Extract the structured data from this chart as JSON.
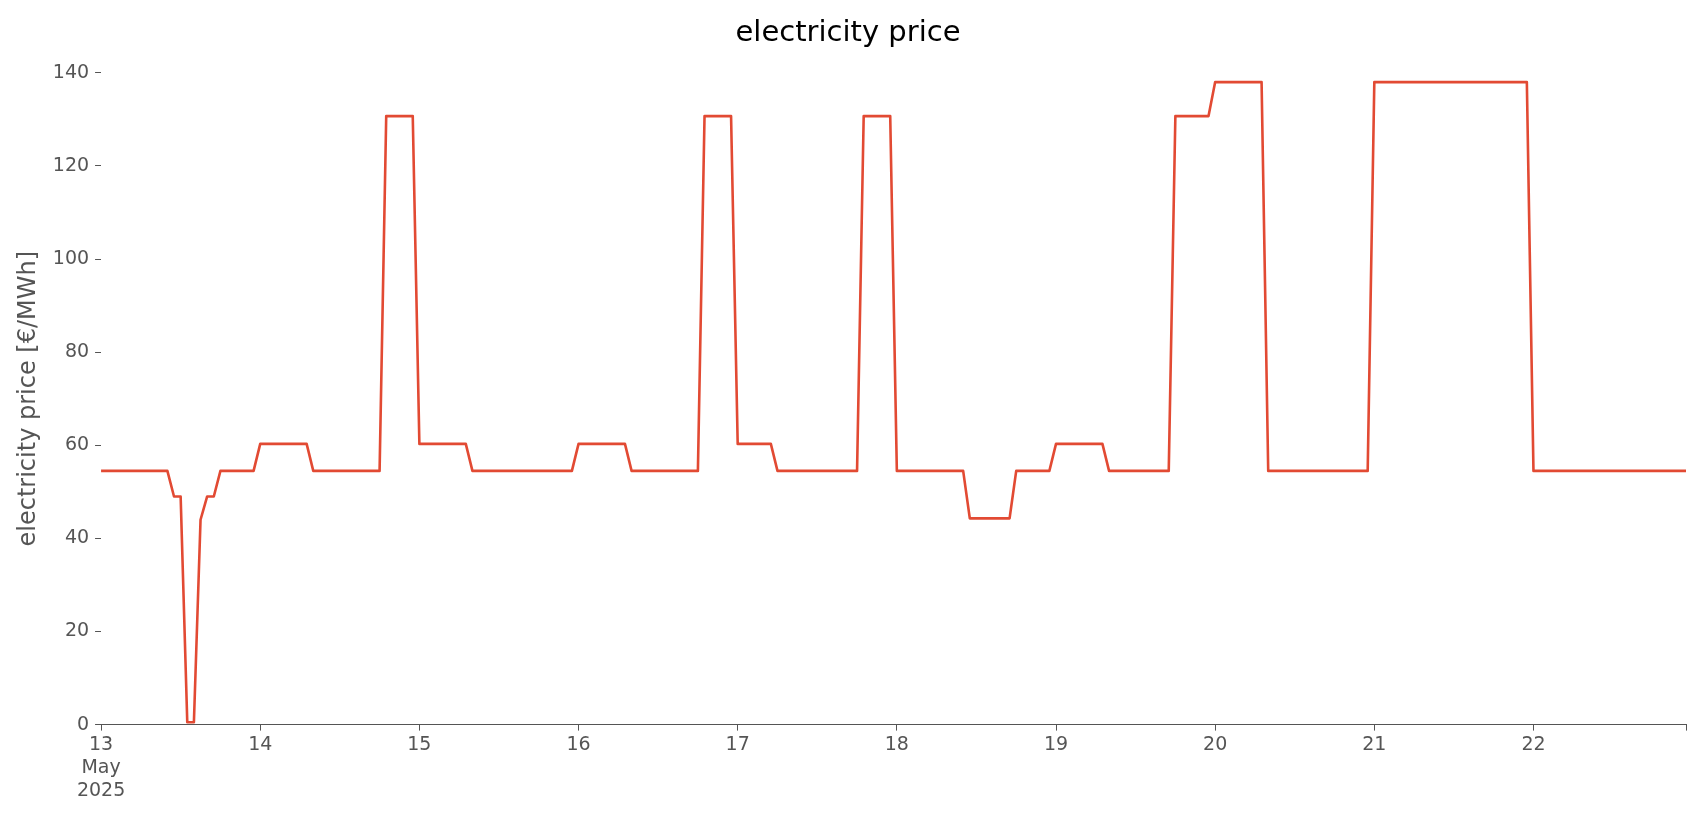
{
  "chart_data": {
    "type": "line",
    "title": "electricity price",
    "ylabel": "electricity price [€/MWh]",
    "x": [
      "2025-05-13T00:00",
      "2025-05-13T10:00",
      "2025-05-13T11:00",
      "2025-05-13T12:00",
      "2025-05-13T13:00",
      "2025-05-13T14:00",
      "2025-05-13T15:00",
      "2025-05-13T16:00",
      "2025-05-13T17:00",
      "2025-05-13T18:00",
      "2025-05-13T23:00",
      "2025-05-14T00:00",
      "2025-05-14T07:00",
      "2025-05-14T08:00",
      "2025-05-14T18:00",
      "2025-05-14T19:00",
      "2025-05-14T23:00",
      "2025-05-15T00:00",
      "2025-05-15T07:00",
      "2025-05-15T08:00",
      "2025-05-15T23:00",
      "2025-05-16T00:00",
      "2025-05-16T07:00",
      "2025-05-16T08:00",
      "2025-05-16T18:00",
      "2025-05-16T19:00",
      "2025-05-16T23:00",
      "2025-05-17T00:00",
      "2025-05-17T05:00",
      "2025-05-17T06:00",
      "2025-05-17T18:00",
      "2025-05-17T19:00",
      "2025-05-17T23:00",
      "2025-05-18T00:00",
      "2025-05-18T10:00",
      "2025-05-18T11:00",
      "2025-05-18T17:00",
      "2025-05-18T18:00",
      "2025-05-18T23:00",
      "2025-05-19T00:00",
      "2025-05-19T07:00",
      "2025-05-19T08:00",
      "2025-05-19T17:00",
      "2025-05-19T18:00",
      "2025-05-19T23:00",
      "2025-05-20T00:00",
      "2025-05-20T07:00",
      "2025-05-20T08:00",
      "2025-05-20T23:00",
      "2025-05-21T00:00",
      "2025-05-21T23:00",
      "2025-05-22T00:00",
      "2025-05-22T23:00"
    ],
    "series": [
      {
        "color": "#e24a33",
        "values": [
          54.5,
          54.5,
          49,
          49,
          0.5,
          0.5,
          44,
          49,
          49,
          54.5,
          54.5,
          60.3,
          60.3,
          54.5,
          54.5,
          130.7,
          130.7,
          60.3,
          60.3,
          54.5,
          54.5,
          60.3,
          60.3,
          54.5,
          54.5,
          130.7,
          130.7,
          60.3,
          60.3,
          54.5,
          54.5,
          130.7,
          130.7,
          54.5,
          54.5,
          44.3,
          44.3,
          54.5,
          54.5,
          60.3,
          60.3,
          54.5,
          54.5,
          130.7,
          130.7,
          138,
          138,
          54.5,
          54.5,
          138,
          138,
          54.5,
          54.5
        ]
      }
    ],
    "xlim": [
      "2025-05-13T00:00",
      "2025-05-22T23:00"
    ],
    "xticks": [
      {
        "value": "2025-05-13",
        "label": "13\nMay\n2025"
      },
      {
        "value": "2025-05-14",
        "label": "14"
      },
      {
        "value": "2025-05-15",
        "label": "15"
      },
      {
        "value": "2025-05-16",
        "label": "16"
      },
      {
        "value": "2025-05-17",
        "label": "17"
      },
      {
        "value": "2025-05-18",
        "label": "18"
      },
      {
        "value": "2025-05-19",
        "label": "19"
      },
      {
        "value": "2025-05-20",
        "label": "20"
      },
      {
        "value": "2025-05-21",
        "label": "21"
      },
      {
        "value": "2025-05-22",
        "label": "22"
      },
      {
        "value": "2025-05-22T23:00",
        "label": null
      }
    ],
    "ylim": [
      0,
      140
    ],
    "yticks": [
      0,
      20,
      40,
      60,
      80,
      100,
      120,
      140
    ],
    "grid": false,
    "legend": false,
    "marker": "none",
    "line_style": "solid"
  }
}
